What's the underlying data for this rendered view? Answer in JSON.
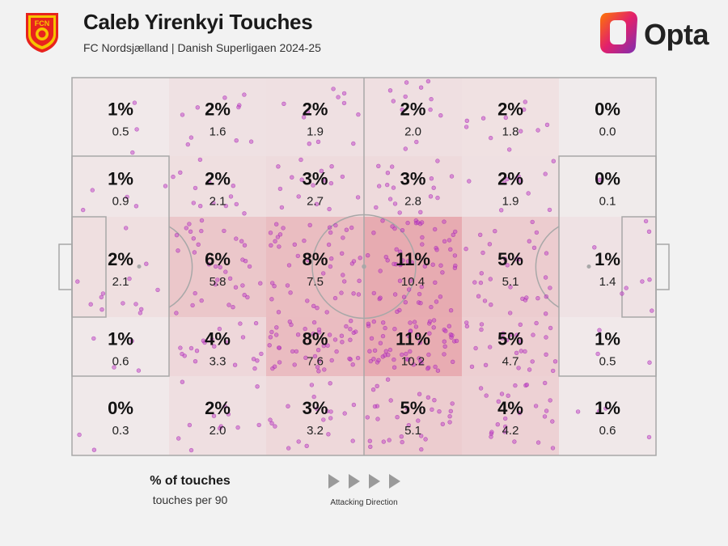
{
  "header": {
    "title": "Caleb Yirenkyi Touches",
    "subtitle": "FC Nordsjælland | Danish Superligaen 2024-25",
    "club_logo_text": "FCN",
    "brand": "Opta"
  },
  "legend": {
    "title": "% of touches",
    "subtitle": "touches per 90"
  },
  "direction": {
    "label": "Attacking Direction"
  },
  "colors": {
    "background": "#f2f2f2",
    "heat": "#e07b85",
    "dot": "#c040c8",
    "line": "#a8a8a8"
  },
  "chart_data": {
    "type": "heatmap",
    "title": "Caleb Yirenkyi Touches",
    "subtitle": "FC Nordsjælland | Danish Superligaen 2024-25",
    "columns": 6,
    "rows": 5,
    "cells": [
      [
        {
          "pct": "1%",
          "p90": "0.5"
        },
        {
          "pct": "2%",
          "p90": "1.6"
        },
        {
          "pct": "2%",
          "p90": "1.9"
        },
        {
          "pct": "2%",
          "p90": "2.0"
        },
        {
          "pct": "2%",
          "p90": "1.8"
        },
        {
          "pct": "0%",
          "p90": "0.0"
        }
      ],
      [
        {
          "pct": "1%",
          "p90": "0.9"
        },
        {
          "pct": "2%",
          "p90": "2.1"
        },
        {
          "pct": "3%",
          "p90": "2.7"
        },
        {
          "pct": "3%",
          "p90": "2.8"
        },
        {
          "pct": "2%",
          "p90": "1.9"
        },
        {
          "pct": "0%",
          "p90": "0.1"
        }
      ],
      [
        {
          "pct": "2%",
          "p90": "2.1"
        },
        {
          "pct": "6%",
          "p90": "5.8"
        },
        {
          "pct": "8%",
          "p90": "7.5"
        },
        {
          "pct": "11%",
          "p90": "10.4"
        },
        {
          "pct": "5%",
          "p90": "5.1"
        },
        {
          "pct": "1%",
          "p90": "1.4"
        }
      ],
      [
        {
          "pct": "1%",
          "p90": "0.6"
        },
        {
          "pct": "4%",
          "p90": "3.3"
        },
        {
          "pct": "8%",
          "p90": "7.6"
        },
        {
          "pct": "11%",
          "p90": "10.2"
        },
        {
          "pct": "5%",
          "p90": "4.7"
        },
        {
          "pct": "1%",
          "p90": "0.5"
        }
      ],
      [
        {
          "pct": "0%",
          "p90": "0.3"
        },
        {
          "pct": "2%",
          "p90": "2.0"
        },
        {
          "pct": "3%",
          "p90": "3.2"
        },
        {
          "pct": "5%",
          "p90": "5.1"
        },
        {
          "pct": "4%",
          "p90": "4.2"
        },
        {
          "pct": "1%",
          "p90": "0.6"
        }
      ]
    ],
    "legend": [
      "% of touches",
      "touches per 90"
    ],
    "direction": "left-to-right"
  }
}
